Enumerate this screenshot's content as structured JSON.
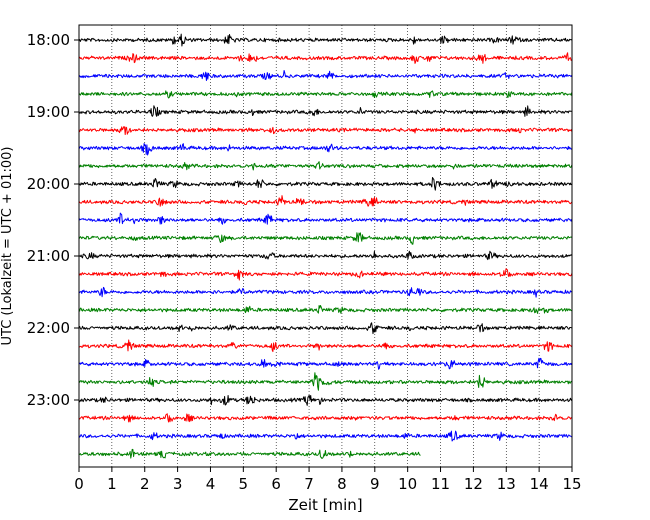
{
  "chart_data": {
    "type": "line",
    "subtype": "helicorder",
    "title": "",
    "xlabel": "Zeit  [min]",
    "ylabel": "UTC (Lokalzeit = UTC + 01:00)",
    "xlim": [
      0,
      15
    ],
    "x_ticks": [
      "0",
      "1",
      "2",
      "3",
      "4",
      "5",
      "6",
      "7",
      "8",
      "9",
      "10",
      "11",
      "12",
      "13",
      "14",
      "15"
    ],
    "y_tick_labels": [
      "18:00",
      "19:00",
      "20:00",
      "21:00",
      "22:00",
      "23:00"
    ],
    "rows_per_hour": 4,
    "row_minutes": 15,
    "row_colors": [
      "#000000",
      "#ff0000",
      "#0000ff",
      "#008000"
    ],
    "grid_x": "dotted",
    "trace_rows": [
      {
        "start": "18:00",
        "end_min": 15
      },
      {
        "start": "18:15",
        "end_min": 15
      },
      {
        "start": "18:30",
        "end_min": 15
      },
      {
        "start": "18:45",
        "end_min": 15
      },
      {
        "start": "19:00",
        "end_min": 15
      },
      {
        "start": "19:15",
        "end_min": 15
      },
      {
        "start": "19:30",
        "end_min": 15
      },
      {
        "start": "19:45",
        "end_min": 15
      },
      {
        "start": "20:00",
        "end_min": 15
      },
      {
        "start": "20:15",
        "end_min": 15
      },
      {
        "start": "20:30",
        "end_min": 15
      },
      {
        "start": "20:45",
        "end_min": 15
      },
      {
        "start": "21:00",
        "end_min": 15
      },
      {
        "start": "21:15",
        "end_min": 15
      },
      {
        "start": "21:30",
        "end_min": 15
      },
      {
        "start": "21:45",
        "end_min": 15
      },
      {
        "start": "22:00",
        "end_min": 15
      },
      {
        "start": "22:15",
        "end_min": 15
      },
      {
        "start": "22:30",
        "end_min": 15
      },
      {
        "start": "22:45",
        "end_min": 15
      },
      {
        "start": "23:00",
        "end_min": 15
      },
      {
        "start": "23:15",
        "end_min": 15
      },
      {
        "start": "23:30",
        "end_min": 15
      },
      {
        "start": "23:45",
        "end_min": 10.4
      }
    ]
  }
}
